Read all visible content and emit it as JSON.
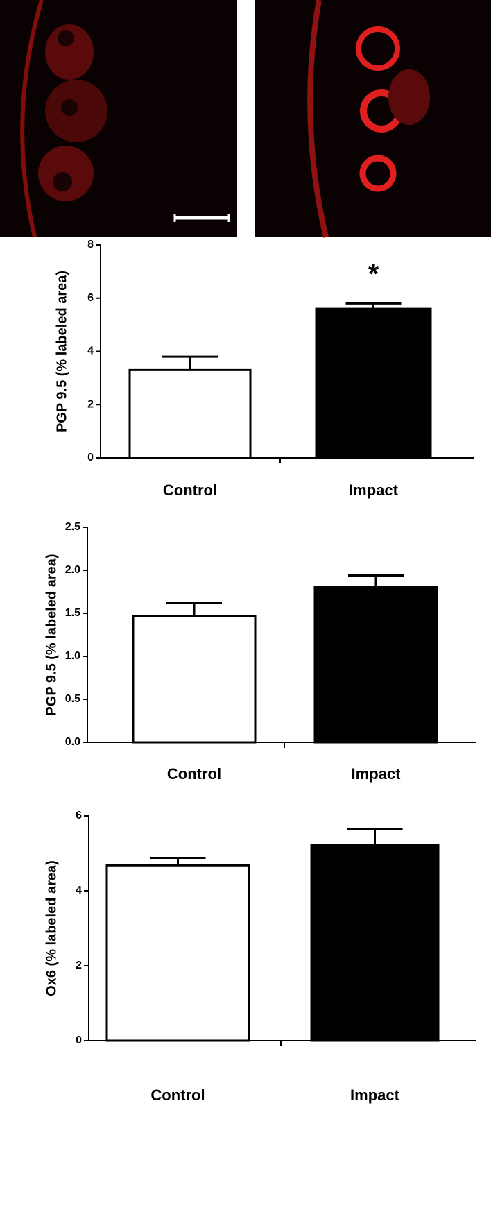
{
  "chart_data": [
    {
      "type": "bar",
      "y_label": "PGP 9.5 (% labeled area)",
      "categories": [
        "Control",
        "Impact"
      ],
      "values": [
        3.3,
        5.6
      ],
      "errors": [
        0.5,
        0.2
      ],
      "colors": [
        "#ffffff",
        "#000000"
      ],
      "annotation": "*",
      "ylim": [
        0,
        8
      ],
      "yticks": [
        0,
        2,
        4,
        6,
        8
      ]
    },
    {
      "type": "bar",
      "y_label": "PGP 9.5 (% labeled area)",
      "categories": [
        "Control",
        "Impact"
      ],
      "values": [
        1.47,
        1.81
      ],
      "errors": [
        0.15,
        0.13
      ],
      "colors": [
        "#ffffff",
        "#000000"
      ],
      "ylim": [
        0,
        2.5
      ],
      "yticks": [
        {
          "value": 0,
          "label": "0.0"
        },
        0.5,
        {
          "value": 1,
          "label": "1.0"
        },
        1.5,
        {
          "value": 2,
          "label": "2.0"
        },
        2.5
      ]
    },
    {
      "type": "bar",
      "y_label": "Ox6 (% labeled area)",
      "categories": [
        "Control",
        "Impact"
      ],
      "values": [
        4.68,
        5.22
      ],
      "errors": [
        0.2,
        0.43
      ],
      "colors": [
        "#ffffff",
        "#000000"
      ],
      "ylim": [
        0,
        6
      ],
      "yticks": [
        0,
        2,
        4,
        6
      ]
    }
  ]
}
